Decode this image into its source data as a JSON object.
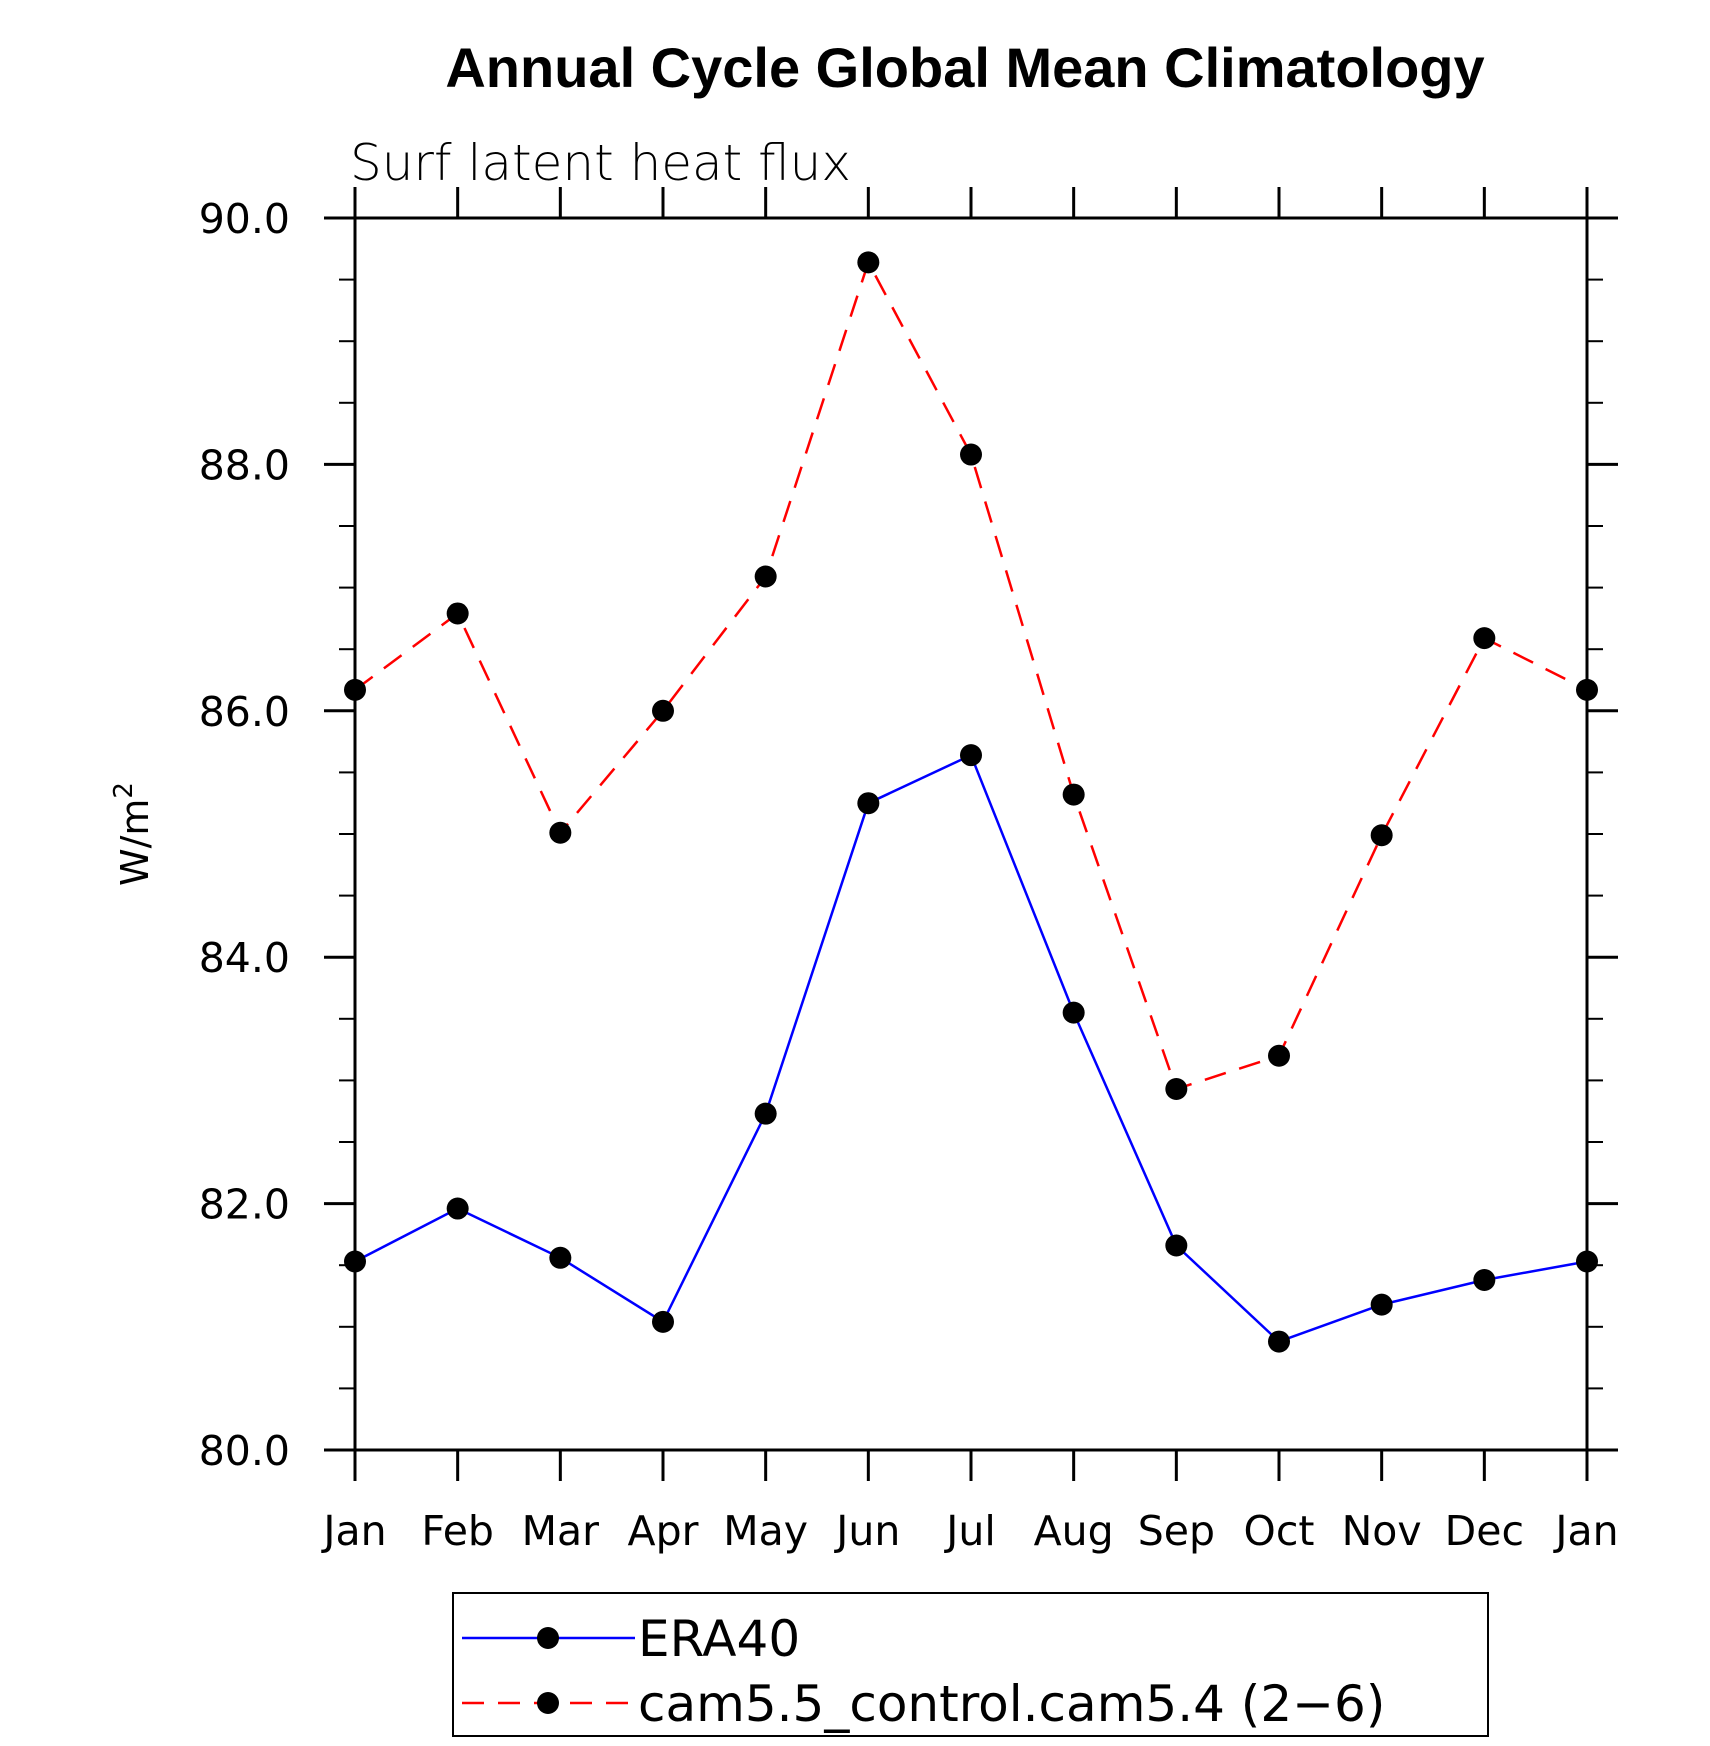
{
  "chart_data": {
    "type": "line",
    "title": "Annual Cycle Global Mean Climatology",
    "subtitle": "Surf latent heat flux",
    "ylabel": "W/m",
    "ylabel_superscript": "2",
    "xlabel": "",
    "categories": [
      "Jan",
      "Feb",
      "Mar",
      "Apr",
      "May",
      "Jun",
      "Jul",
      "Aug",
      "Sep",
      "Oct",
      "Nov",
      "Dec",
      "Jan"
    ],
    "ylim": [
      80.0,
      90.0
    ],
    "yticks": [
      "80.0",
      "82.0",
      "84.0",
      "86.0",
      "88.0",
      "90.0"
    ],
    "y_minor_step": 0.5,
    "grid": false,
    "legend_position": "bottom",
    "series": [
      {
        "name": "ERA40",
        "color": "#0000ff",
        "dash": "solid",
        "marker_color": "#000000",
        "values": [
          81.53,
          81.96,
          81.56,
          81.04,
          82.73,
          85.25,
          85.64,
          83.55,
          81.66,
          80.88,
          81.18,
          81.38,
          81.53
        ]
      },
      {
        "name": "cam5.5_control.cam5.4 (2−6)",
        "color": "#ff0000",
        "dash": "dashed",
        "marker_color": "#000000",
        "values": [
          86.17,
          86.79,
          85.01,
          86.0,
          87.09,
          89.64,
          88.08,
          85.32,
          82.93,
          83.2,
          84.99,
          86.59,
          86.17
        ]
      }
    ]
  }
}
